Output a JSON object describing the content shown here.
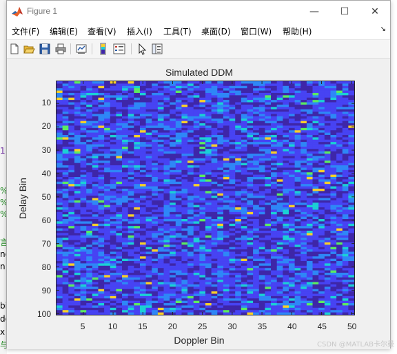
{
  "window": {
    "title": "Figure 1",
    "buttons": {
      "minimize": "—",
      "maximize": "☐",
      "close": "✕"
    }
  },
  "menubar": {
    "items": [
      "文件(F)",
      "编辑(E)",
      "查看(V)",
      "插入(I)",
      "工具(T)",
      "桌面(D)",
      "窗口(W)",
      "帮助(H)"
    ],
    "overflow": "↘"
  },
  "toolbar": {
    "icons": [
      "new-figure-icon",
      "open-file-icon",
      "save-icon",
      "print-icon",
      "link-plot-icon",
      "insert-colorbar-icon",
      "insert-legend-icon",
      "pointer-icon",
      "property-inspector-icon"
    ]
  },
  "chart_data": {
    "type": "heatmap",
    "title": "Simulated DDM",
    "xlabel": "Doppler Bin",
    "ylabel": "Delay Bin",
    "x_ticks": [
      5,
      10,
      15,
      20,
      25,
      30,
      35,
      40,
      45,
      50
    ],
    "y_ticks": [
      10,
      20,
      30,
      40,
      50,
      60,
      70,
      80,
      90,
      100
    ],
    "xlim": [
      0.5,
      50.5
    ],
    "ylim": [
      0.5,
      100.5
    ],
    "y_direction": "reverse",
    "n_cols": 50,
    "n_rows": 100,
    "colormap": "parula",
    "colormap_colors": [
      "#3e26a8",
      "#4743f3",
      "#2e87f7",
      "#1bd0d5",
      "#5bec60",
      "#f9d029"
    ],
    "note_values": "random noise-like field; cell values estimated"
  },
  "bg_fragments": [
    "1",
    "%",
    "%",
    "%",
    "言",
    "nc",
    "n",
    "bi",
    "de",
    "x",
    "与"
  ],
  "watermark": "CSDN @MATLAB卡尔曼"
}
